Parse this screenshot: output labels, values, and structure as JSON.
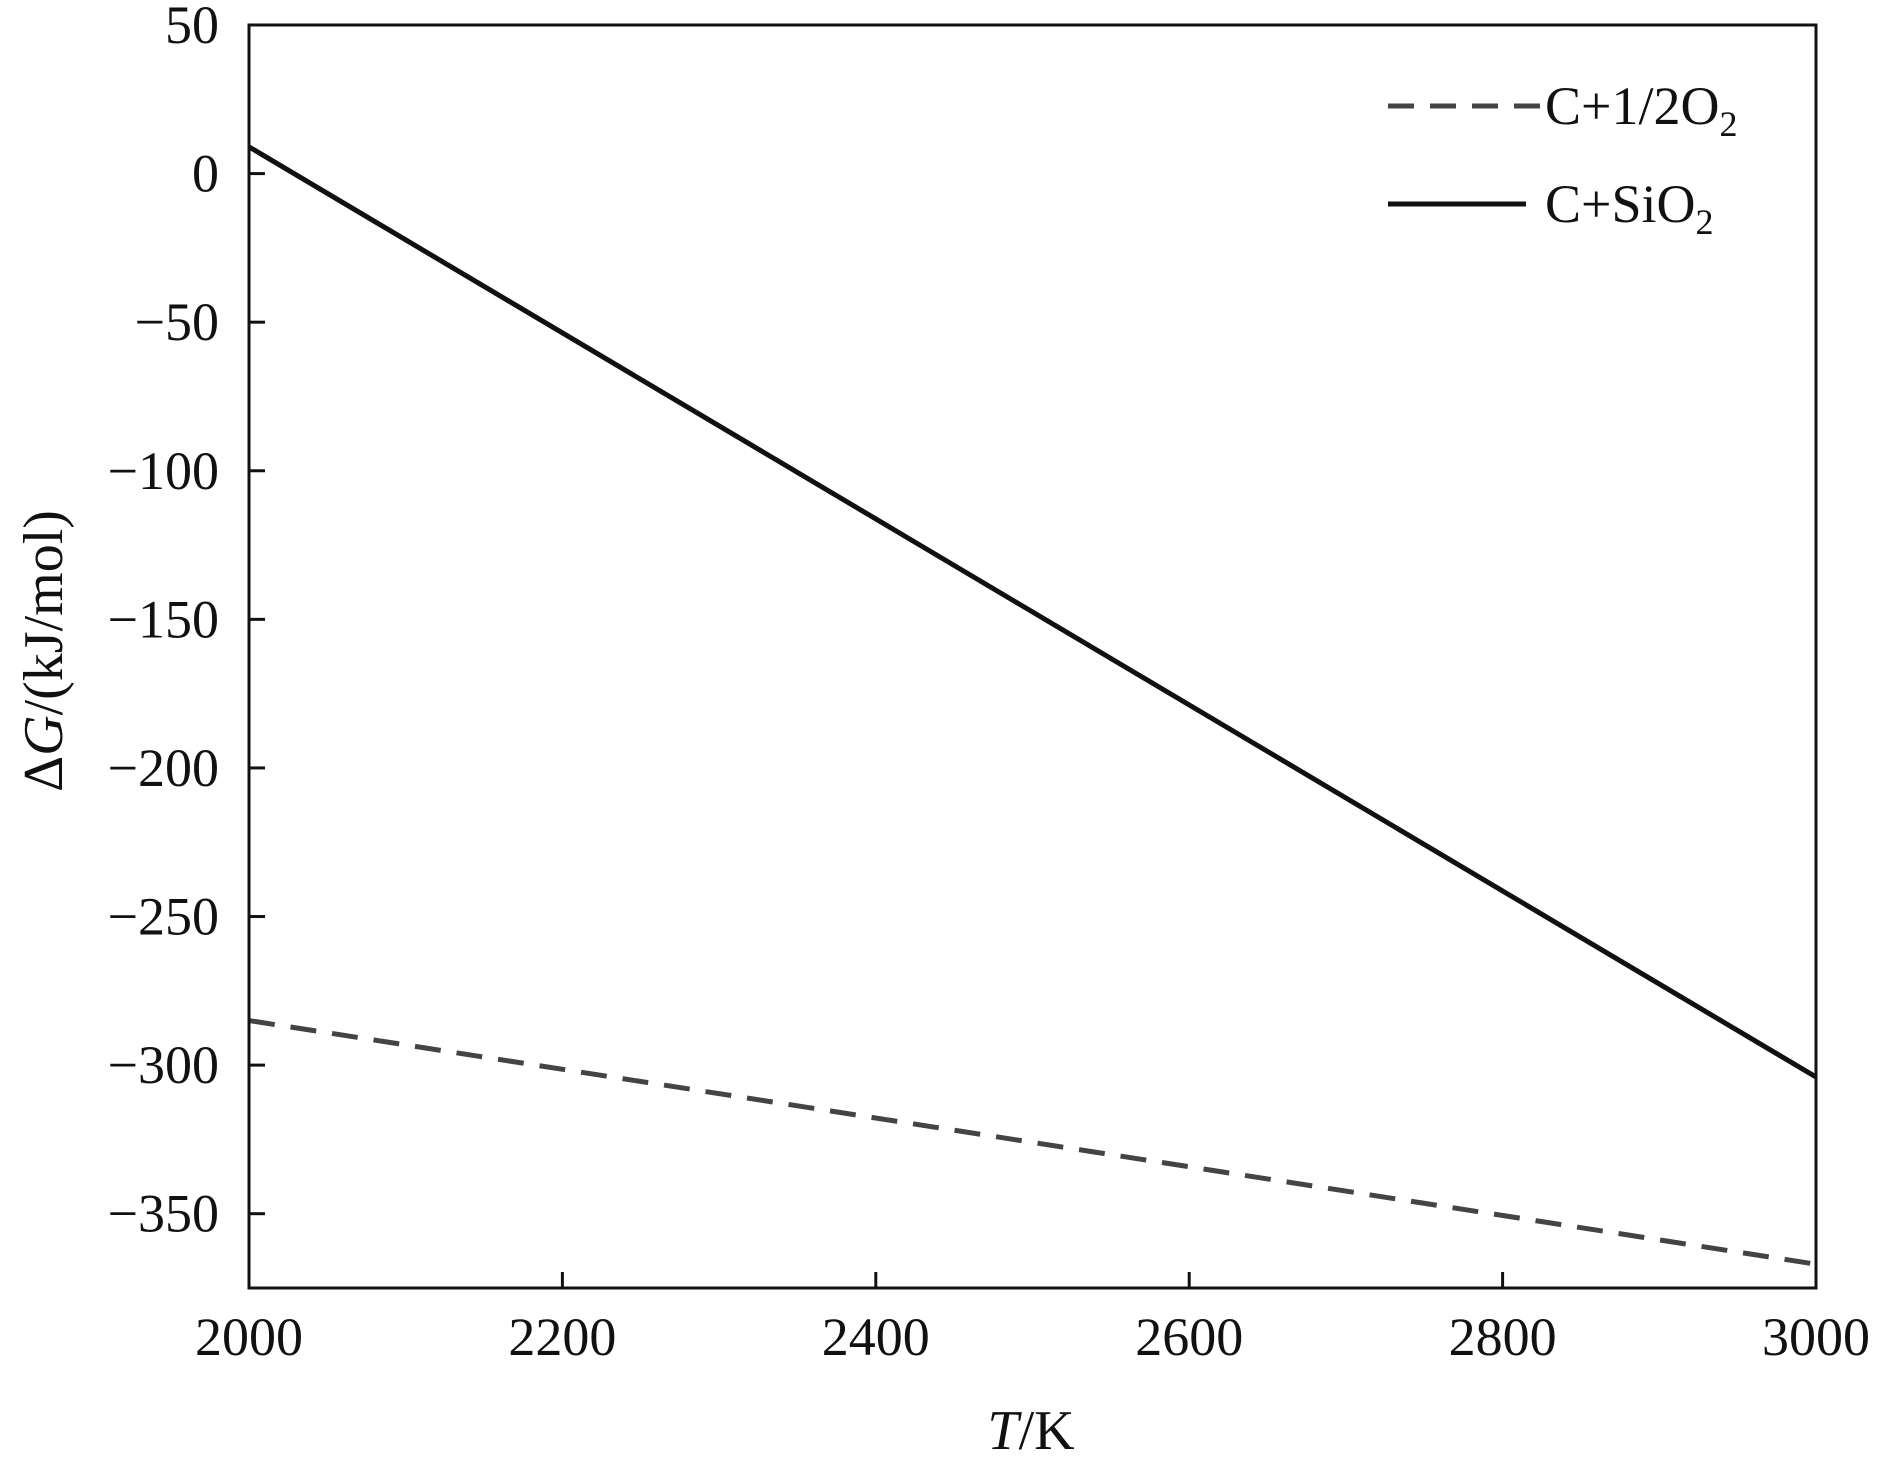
{
  "chart_data": {
    "type": "line",
    "title": "",
    "xlabel": {
      "italic": "T",
      "rest": "/K"
    },
    "ylabel": {
      "prefix": "Δ",
      "italic": "G",
      "rest": "/(kJ/mol)"
    },
    "xlim": [
      2000,
      3000
    ],
    "ylim": [
      -375,
      50
    ],
    "xticks": [
      2000,
      2200,
      2400,
      2600,
      2800,
      3000
    ],
    "yticks": [
      50,
      0,
      -50,
      -100,
      -150,
      -200,
      -250,
      -300,
      -350
    ],
    "xtick_labels": [
      "2000",
      "2200",
      "2400",
      "2600",
      "2800",
      "3000"
    ],
    "ytick_labels": [
      "50",
      "0",
      "−50",
      "−100",
      "−150",
      "−200",
      "−250",
      "−300",
      "−350"
    ],
    "grid": false,
    "legend_position": "top-right",
    "series": [
      {
        "name": "C+1/2O2",
        "legend": {
          "main": "C+1/2O",
          "sub": "2"
        },
        "style": "dashed",
        "color": "#444444",
        "x": [
          2000,
          3000
        ],
        "y": [
          -285,
          -367
        ]
      },
      {
        "name": "C+SiO2",
        "legend": {
          "main": "C+SiO",
          "sub": "2"
        },
        "style": "solid",
        "color": "#111111",
        "x": [
          2000,
          3000
        ],
        "y": [
          9,
          -304
        ]
      }
    ]
  }
}
